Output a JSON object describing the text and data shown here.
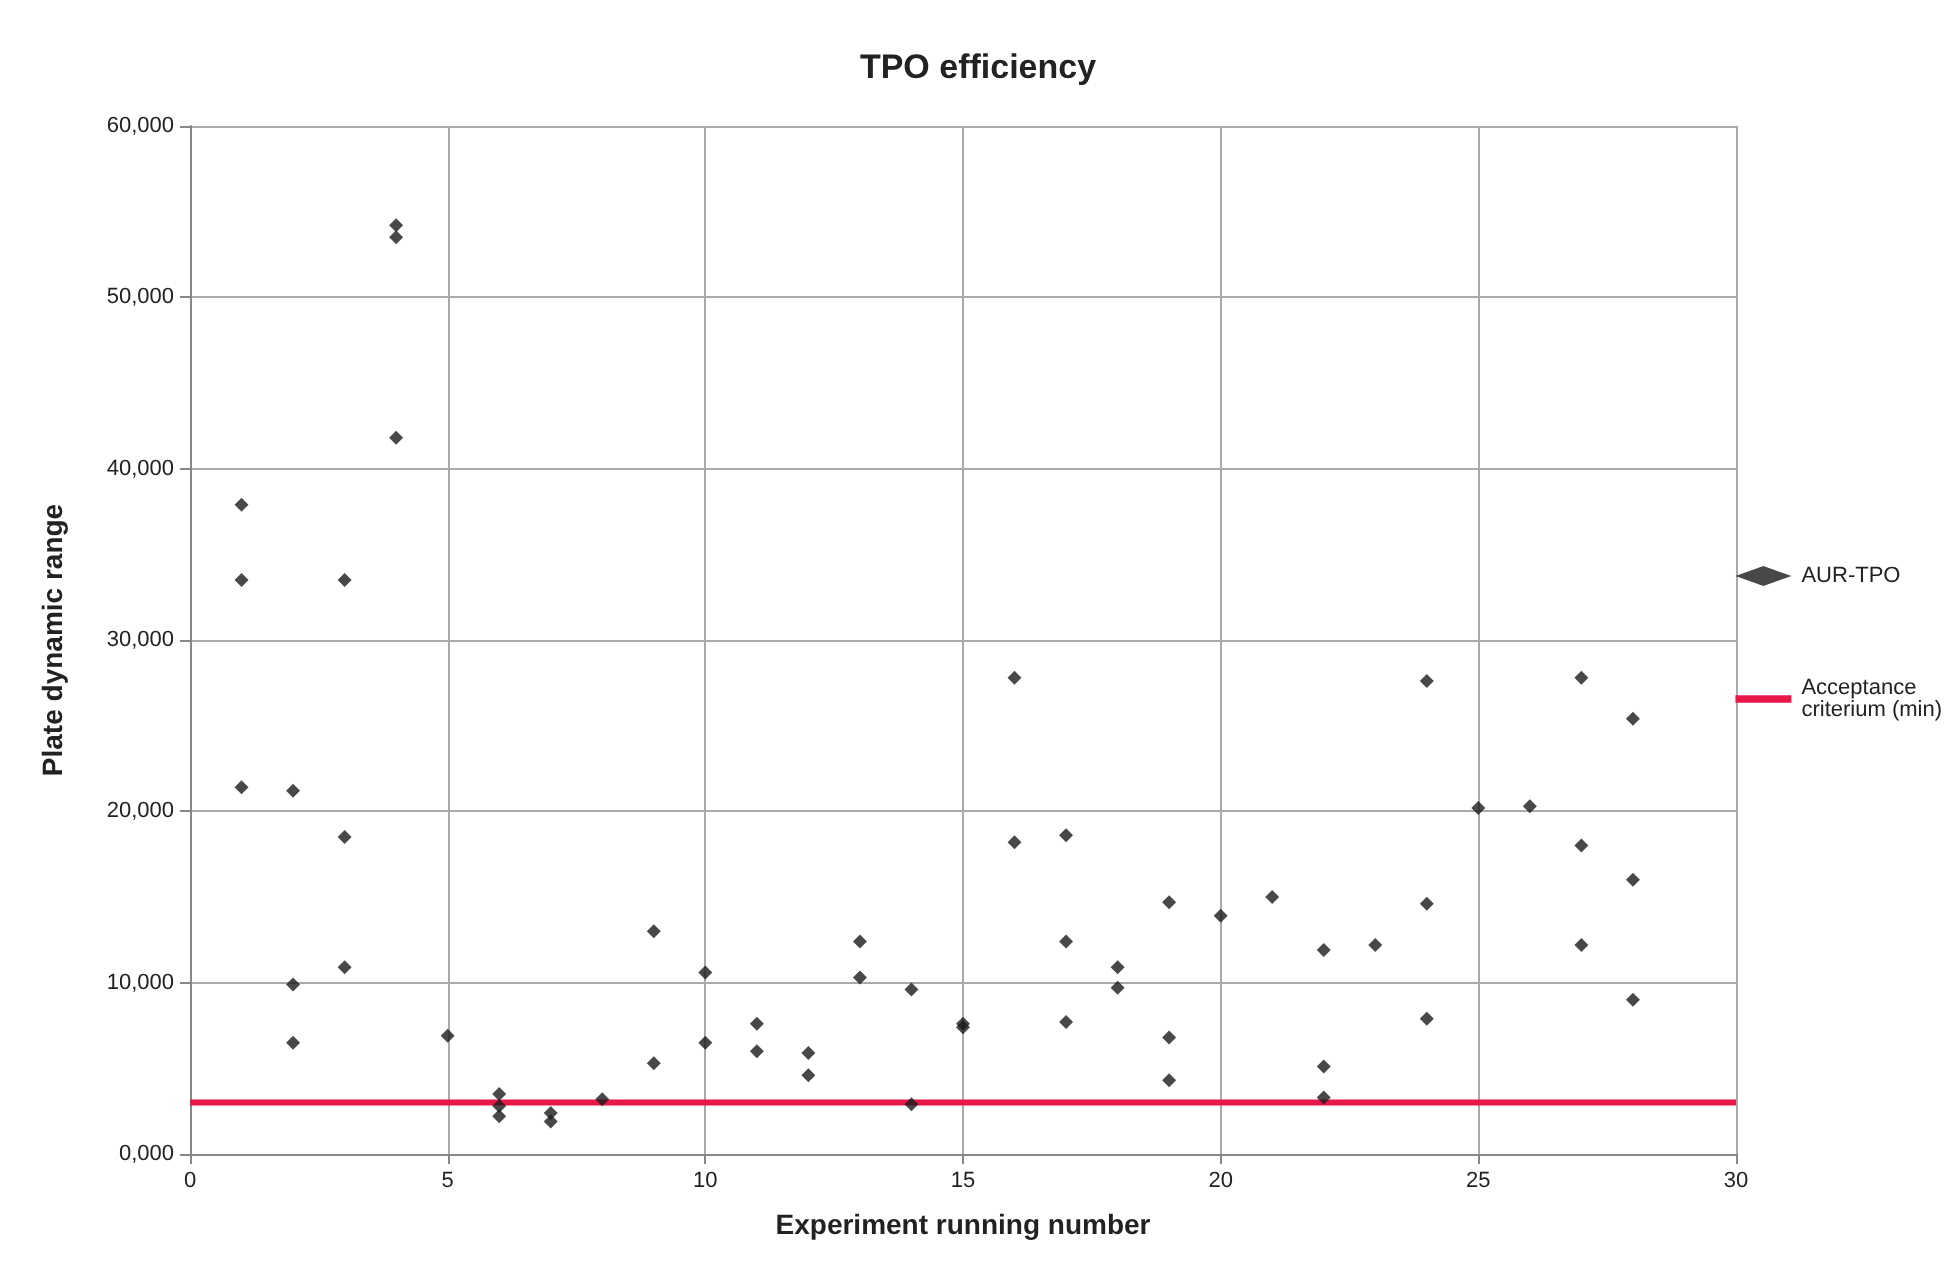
{
  "chart_data": {
    "type": "scatter",
    "title": "TPO efficiency",
    "xlabel": "Experiment running number",
    "ylabel": "Plate dynamic range",
    "xlim": [
      0,
      30
    ],
    "xticks": [
      0,
      5,
      10,
      15,
      20,
      25,
      30
    ],
    "ylim": [
      0,
      60000
    ],
    "yticks": [
      {
        "value": 0,
        "label": "0,000"
      },
      {
        "value": 10000,
        "label": "10,000"
      },
      {
        "value": 20000,
        "label": "20,000"
      },
      {
        "value": 30000,
        "label": "30,000"
      },
      {
        "value": 40000,
        "label": "40,000"
      },
      {
        "value": 50000,
        "label": "50,000"
      },
      {
        "value": 60000,
        "label": "60,000"
      }
    ],
    "grid": true,
    "legend": "right",
    "marker": "diamond",
    "series": [
      {
        "name": "AUR-TPO",
        "color": "#1a1a1a",
        "x": [
          1,
          1,
          1,
          2,
          2,
          2,
          3,
          3,
          3,
          4,
          4,
          4,
          5,
          6,
          6,
          6,
          7,
          7,
          8,
          9,
          9,
          10,
          10,
          11,
          11,
          12,
          12,
          13,
          13,
          14,
          14,
          15,
          15,
          16,
          16,
          17,
          17,
          17,
          18,
          18,
          19,
          19,
          19,
          20,
          21,
          22,
          22,
          22,
          23,
          24,
          24,
          24,
          25,
          26,
          27,
          27,
          27,
          28,
          28,
          28
        ],
        "values": [
          37900,
          33500,
          21400,
          21200,
          9900,
          6500,
          33500,
          18500,
          10900,
          54200,
          53500,
          41800,
          6900,
          3500,
          2800,
          2200,
          2400,
          1900,
          3200,
          13000,
          5300,
          10600,
          6500,
          7600,
          6000,
          5900,
          4600,
          12400,
          10300,
          9600,
          2900,
          7600,
          7400,
          27800,
          18200,
          18600,
          12400,
          7700,
          10900,
          9700,
          14700,
          6800,
          4300,
          13900,
          15000,
          11900,
          5100,
          3300,
          12200,
          27600,
          14600,
          7900,
          20200,
          20300,
          27800,
          18000,
          12200,
          25400,
          16000,
          9000
        ]
      },
      {
        "name": "Acceptance criterium (min)",
        "type": "line",
        "color": "#e8174a",
        "marker": "none",
        "line_style": "solid",
        "x": [
          0,
          30
        ],
        "values": [
          3000,
          3000
        ]
      }
    ]
  }
}
